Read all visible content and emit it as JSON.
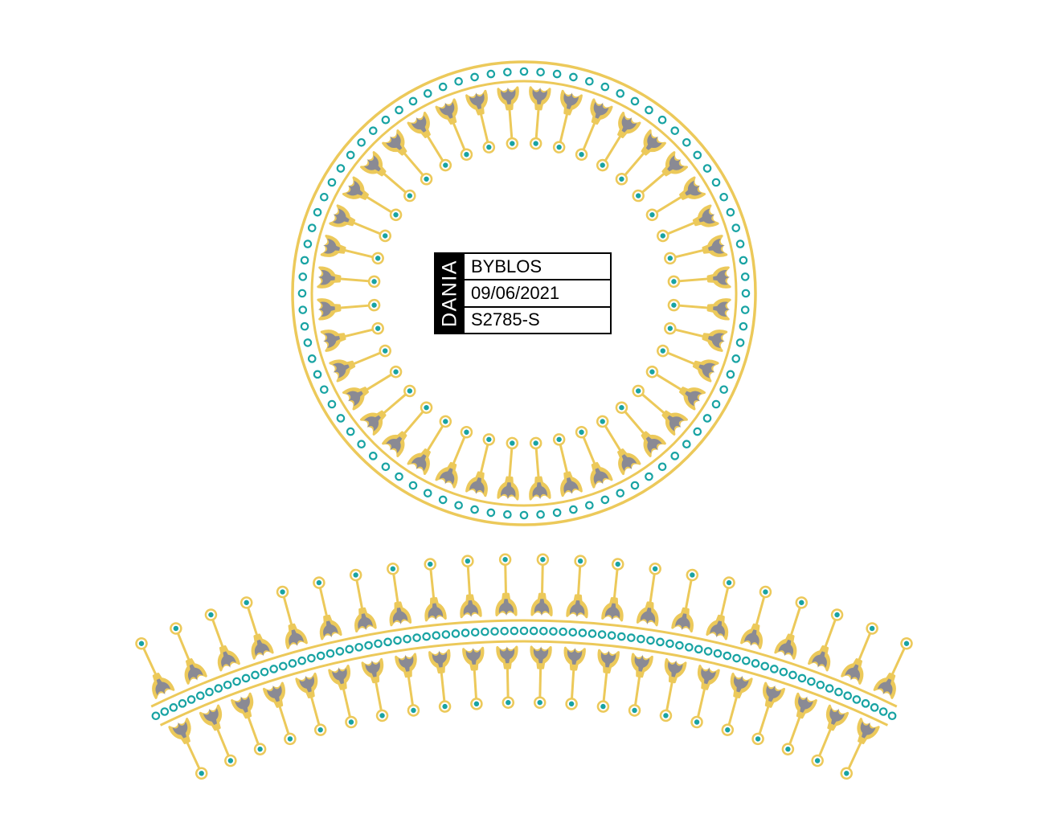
{
  "label": {
    "brand": "DANIA",
    "name": "BYBLOS",
    "date": "09/06/2021",
    "code": "S2785-S"
  },
  "palette": {
    "gold": "#ecc95a",
    "teal": "#18a3a3",
    "gray": "#8a8a94",
    "black": "#000000"
  },
  "ornament": {
    "motif": "fleur-pendant",
    "circle_motif_count": 40,
    "circle_bead_count": 84,
    "arc_motif_count": 22,
    "arc_bead_count": 78
  }
}
